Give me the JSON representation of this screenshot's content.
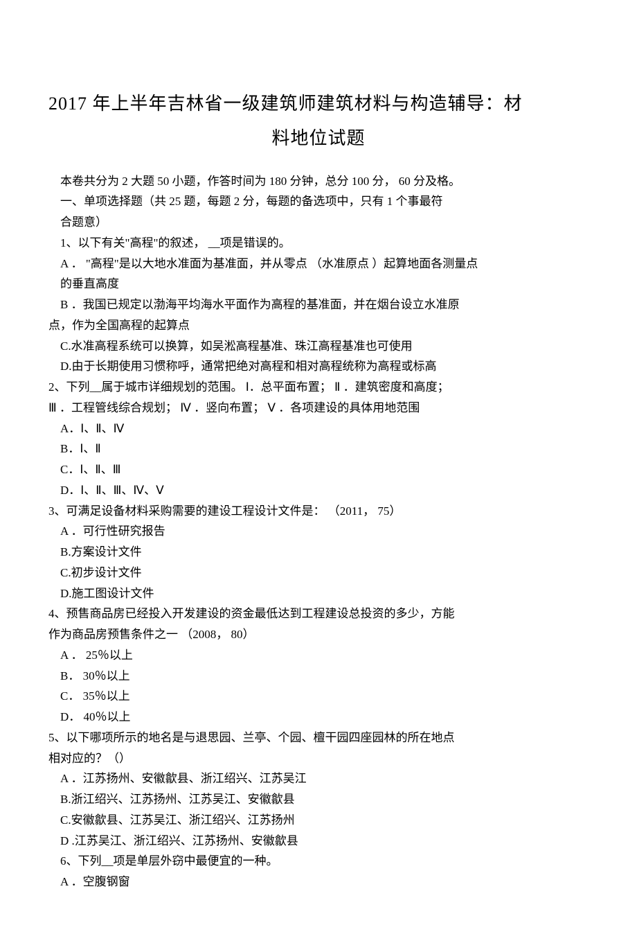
{
  "title_line1": "2017 年上半年吉林省一级建筑师建筑材料与构造辅导：材",
  "title_line2": "料地位试题",
  "intro1": "本卷共分为 2 大题 50 小题，作答时间为 180 分钟，总分   100 分，   60 分及格。",
  "intro2": "一、单项选择题（共   25 题，每题 2 分，每题的备选项中，只有      1 个事最符",
  "intro2b": "合题意）",
  "q1": "1、以下有关\"高程\"的叙述，   __项是错误的。",
  "q1a": "A ． \"高程\"是以大地水准面为基准面，并从零点 （水准原点   ）起算地面各测量点",
  "q1a2": "的垂直高度",
  "q1b": "B ．我国已规定以渤海平均海水平面作为高程的基准面，并在烟台设立水准原",
  "q1b2": "点，作为全国高程的起算点",
  "q1c": "C.水准高程系统可以换算，如吴淞高程基准、珠江高程基准也可使用",
  "q1d": "D.由于长期使用习惯称呼，通常把绝对高程和相对高程统称为高程或标高",
  "q2": "2、下列__属于城市详细规划的范围。   Ⅰ．总平面布置； Ⅱ ．建筑密度和高度；",
  "q2b": "Ⅲ ．工程管线综合规划； Ⅳ ．竖向布置； Ⅴ ．各项建设的具体用地范围",
  "q2oa": "A．Ⅰ、Ⅱ、Ⅳ",
  "q2ob": "B．Ⅰ、Ⅱ",
  "q2oc": "C．Ⅰ、Ⅱ、Ⅲ",
  "q2od": "D．Ⅰ、Ⅱ、Ⅲ、Ⅳ、Ⅴ",
  "q3": "3、可满足设备材料采购需要的建设工程设计文件是：   （2011，  75）",
  "q3a": "A ．可行性研究报告",
  "q3b": "B.方案设计文件",
  "q3c": "C.初步设计文件",
  "q3d": "D.施工图设计文件",
  "q4": "4、预售商品房已经投入开发建设的资金最低达到工程建设总投资的多少，方能",
  "q4b": "作为商品房预售条件之一  （2008，  80）",
  "q4oa": "A ．  25％以上",
  "q4ob": "B．  30％以上",
  "q4oc": "C．  35％以上",
  "q4od": "D．  40％以上",
  "q5": "5、以下哪项所示的地名是与退思园、兰亭、个园、檀干园四座园林的所在地点",
  "q5b": "相对应的？（）",
  "q5oa": "A ．江苏扬州、安徽歙县、浙江绍兴、江苏吴江",
  "q5ob": "B.浙江绍兴、江苏扬州、江苏吴江、安徽歙县",
  "q5oc": "C.安徽歙县、江苏吴江、浙江绍兴、江苏扬州",
  "q5od": "D .江苏吴江、浙江绍兴、江苏扬州、安徽歙县",
  "q6": "6、下列__项是单层外窃中最便宜的一种。",
  "q6a": "A ．空腹钢窗"
}
